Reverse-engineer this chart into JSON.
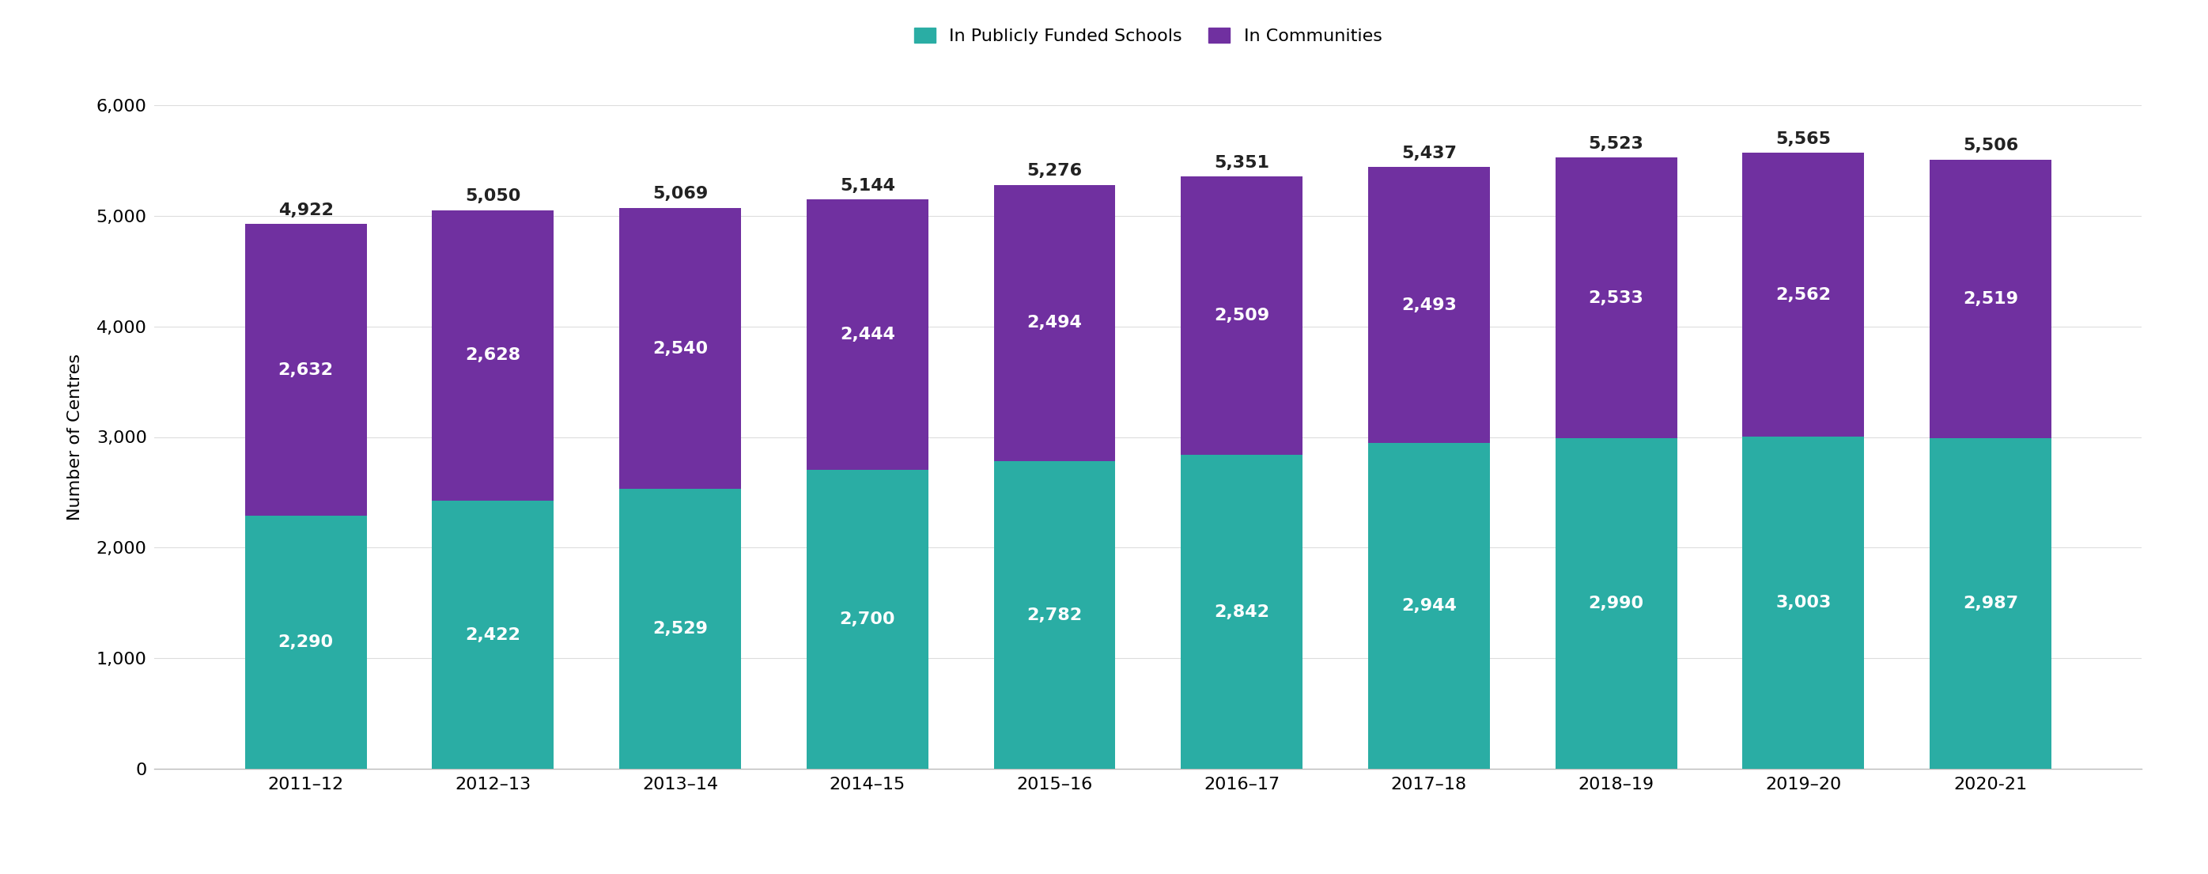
{
  "categories": [
    "2011–12",
    "2012–13",
    "2013–14",
    "2014–15",
    "2015–16",
    "2016–17",
    "2017–18",
    "2018–19",
    "2019–20",
    "2020-21"
  ],
  "schools_values": [
    2290,
    2422,
    2529,
    2700,
    2782,
    2842,
    2944,
    2990,
    3003,
    2987
  ],
  "communities_values": [
    2632,
    2628,
    2540,
    2444,
    2494,
    2509,
    2493,
    2533,
    2562,
    2519
  ],
  "totals": [
    4922,
    5050,
    5069,
    5144,
    5276,
    5351,
    5437,
    5523,
    5565,
    5506
  ],
  "schools_color": "#2AADA4",
  "communities_color": "#7030A0",
  "background_color": "#FFFFFF",
  "ylabel": "Number of Centres",
  "ylim": [
    0,
    6000
  ],
  "yticks": [
    0,
    1000,
    2000,
    3000,
    4000,
    5000,
    6000
  ],
  "legend_schools": "In Publicly Funded Schools",
  "legend_communities": "In Communities",
  "label_fontsize": 16,
  "tick_fontsize": 16,
  "bar_label_fontsize": 16,
  "total_label_fontsize": 16
}
